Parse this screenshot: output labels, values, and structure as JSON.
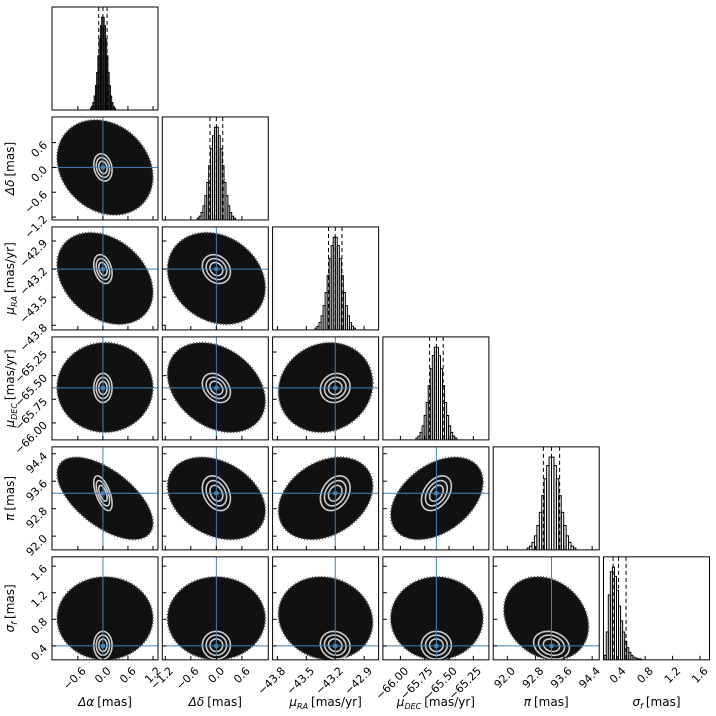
{
  "chart_data": {
    "type": "corner",
    "sample_color": "#111111",
    "truth_color": "#4682b4",
    "contour_color": "#cccccc",
    "hist_color": "#000000",
    "parameters": [
      {
        "symbol": "Δα",
        "unit": "[mas]",
        "lim": [
          -1.22,
          1.32
        ],
        "ticks": [
          {
            "value": -0.6,
            "label": "−0.6"
          },
          {
            "value": 0,
            "label": "0.0"
          },
          0.6,
          1.2
        ],
        "truth": 0,
        "quantiles": [
          -0.1,
          0,
          0.1
        ],
        "sample_range": [
          -1.1,
          1.2
        ],
        "bins": [
          -0.3,
          -0.27,
          -0.24,
          -0.21,
          -0.18,
          -0.15,
          -0.12,
          -0.09,
          -0.06,
          -0.03,
          0,
          0.03,
          0.06,
          0.09,
          0.12,
          0.15,
          0.18,
          0.21,
          0.24,
          0.27,
          0.3
        ],
        "counts": [
          2,
          4,
          8,
          15,
          26,
          40,
          58,
          76,
          90,
          99,
          99,
          90,
          76,
          58,
          40,
          26,
          15,
          8,
          4,
          2
        ]
      },
      {
        "symbol": "Δδ",
        "unit": "[mas]",
        "lim": [
          -1.27,
          1.22
        ],
        "ticks": [
          {
            "value": -1.2,
            "label": "−1.2"
          },
          {
            "value": -0.6,
            "label": "−0.6"
          },
          {
            "value": 0,
            "label": "0.0"
          },
          0.6
        ],
        "truth": 0,
        "quantiles": [
          -0.15,
          0,
          0.15
        ],
        "sample_range": [
          -1.15,
          1.15
        ],
        "bins": [
          -0.45,
          -0.405,
          -0.36,
          -0.315,
          -0.27,
          -0.225,
          -0.18,
          -0.135,
          -0.09,
          -0.045,
          0,
          0.045,
          0.09,
          0.135,
          0.18,
          0.225,
          0.27,
          0.315,
          0.36,
          0.405,
          0.45
        ],
        "counts": [
          2,
          4,
          8,
          15,
          26,
          40,
          58,
          76,
          90,
          99,
          99,
          90,
          76,
          58,
          40,
          26,
          15,
          8,
          4,
          2
        ]
      },
      {
        "symbol": "μ",
        "sub": "RA",
        "unit": "[mas/yr]",
        "lim": [
          -43.85,
          -42.75
        ],
        "ticks": [
          {
            "value": -43.8,
            "label": "−43.8"
          },
          {
            "value": -43.5,
            "label": "−43.5"
          },
          {
            "value": -43.2,
            "label": "−43.2"
          },
          {
            "value": -42.9,
            "label": "−42.9"
          }
        ],
        "truth": -43.2,
        "quantiles": [
          -43.27,
          -43.2,
          -43.13
        ],
        "sample_range": [
          -43.79,
          -42.81
        ],
        "bins": [
          -43.41,
          -43.389,
          -43.368,
          -43.347,
          -43.326,
          -43.305,
          -43.284,
          -43.263,
          -43.242,
          -43.221,
          -43.2,
          -43.179,
          -43.158,
          -43.137,
          -43.116,
          -43.095,
          -43.074,
          -43.053,
          -43.032,
          -43.011,
          -42.99
        ],
        "counts": [
          2,
          4,
          8,
          15,
          26,
          40,
          58,
          76,
          90,
          99,
          99,
          90,
          76,
          58,
          40,
          26,
          15,
          8,
          4,
          2
        ]
      },
      {
        "symbol": "μ",
        "sub": "DEC",
        "unit": "[mas/yr]",
        "lim": [
          -66.18,
          -65.09
        ],
        "ticks": [
          {
            "value": -66,
            "label": "−66.00"
          },
          {
            "value": -65.75,
            "label": "−65.75"
          },
          {
            "value": -65.5,
            "label": "−65.50"
          },
          {
            "value": -65.25,
            "label": "−65.25"
          }
        ],
        "truth": -65.63,
        "quantiles": [
          -65.7,
          -65.63,
          -65.56
        ],
        "sample_range": [
          -66.1,
          -65.15
        ],
        "bins": [
          -65.84,
          -65.819,
          -65.798,
          -65.777,
          -65.756,
          -65.735,
          -65.714,
          -65.693,
          -65.672,
          -65.651,
          -65.63,
          -65.609,
          -65.588,
          -65.567,
          -65.546,
          -65.525,
          -65.504,
          -65.483,
          -65.462,
          -65.441,
          -65.42
        ],
        "counts": [
          2,
          4,
          8,
          15,
          26,
          40,
          58,
          76,
          90,
          99,
          99,
          90,
          76,
          58,
          40,
          26,
          15,
          8,
          4,
          2
        ]
      },
      {
        "symbol": "π",
        "unit": "[mas]",
        "lim": [
          91.6,
          94.6
        ],
        "ticks": [
          {
            "value": 92,
            "label": "92.0"
          },
          92.8,
          93.6,
          94.4
        ],
        "truth": 93.25,
        "quantiles": [
          93.02,
          93.25,
          93.48
        ],
        "sample_range": [
          91.9,
          94.3
        ],
        "bins": [
          92.56,
          92.629,
          92.698,
          92.767,
          92.836,
          92.905,
          92.974,
          93.043,
          93.112,
          93.181,
          93.25,
          93.319,
          93.388,
          93.457,
          93.526,
          93.595,
          93.664,
          93.733,
          93.802,
          93.871,
          93.94
        ],
        "counts": [
          2,
          4,
          8,
          15,
          26,
          40,
          58,
          76,
          90,
          99,
          99,
          90,
          76,
          58,
          40,
          26,
          15,
          8,
          4,
          2
        ]
      },
      {
        "symbol": "σ",
        "sub": "f",
        "unit": "[mas]",
        "lim": [
          0.19,
          1.74
        ],
        "ticks": [
          0.4,
          0.8,
          1.2,
          1.6
        ],
        "truth": 0.4,
        "quantiles": [
          0.33,
          0.41,
          0.52
        ],
        "sample_range": [
          0.19,
          1.44
        ],
        "bins": [
          0.2,
          0.23,
          0.26,
          0.29,
          0.32,
          0.35,
          0.38,
          0.41,
          0.44,
          0.47,
          0.5,
          0.53,
          0.56,
          0.59,
          0.62,
          0.65,
          0.68,
          0.71,
          0.74,
          0.77,
          0.8
        ],
        "counts": [
          5,
          30,
          70,
          95,
          100,
          90,
          75,
          58,
          42,
          30,
          20,
          13,
          8,
          5,
          3,
          2,
          1,
          1,
          0,
          0
        ]
      }
    ],
    "correlations": [
      [],
      [
        -0.2
      ],
      [
        -0.3,
        -0.2
      ],
      [
        0,
        -0.3,
        0.1
      ],
      [
        -0.6,
        -0.3,
        0.3,
        0.4
      ],
      [
        0,
        0,
        -0.1,
        0,
        -0.2
      ]
    ]
  }
}
